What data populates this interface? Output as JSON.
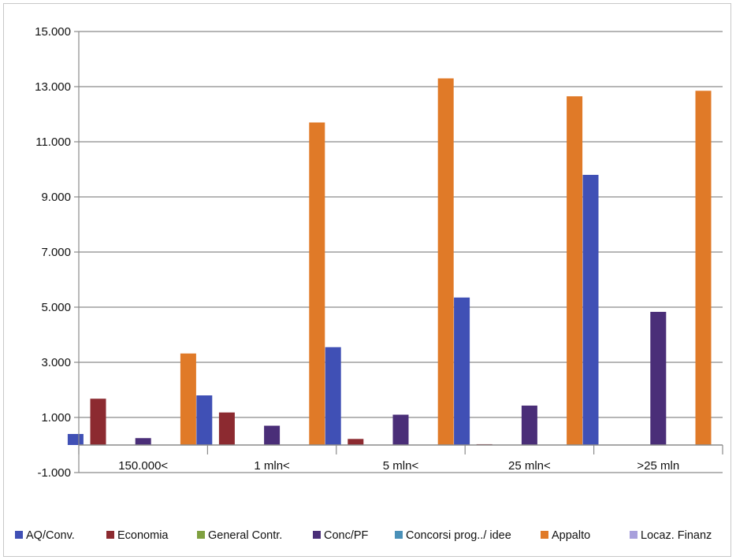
{
  "chart_data": {
    "type": "bar",
    "categories": [
      "150.000<",
      "1 mln<",
      "5 mln<",
      "25 mln<",
      ">25 mln"
    ],
    "ylim": [
      -1000,
      15000
    ],
    "yticks": [
      -1000,
      1000,
      3000,
      5000,
      7000,
      9000,
      11000,
      13000,
      15000
    ],
    "ytick_labels": [
      "-1.000",
      "1.000",
      "3.000",
      "5.000",
      "7.000",
      "9.000",
      "11.000",
      "13.000",
      "15.000"
    ],
    "grid": true,
    "legend_position": "bottom",
    "series": [
      {
        "name": "AQ/Conv.",
        "color": "#4050b5",
        "values": [
          400,
          1800,
          3550,
          5350,
          9800
        ]
      },
      {
        "name": "Economia",
        "color": "#8c2a30",
        "values": [
          1680,
          1180,
          220,
          30,
          0
        ]
      },
      {
        "name": "General Contr.",
        "color": "#7fa040",
        "values": [
          0,
          0,
          0,
          0,
          0
        ]
      },
      {
        "name": "Conc/PF",
        "color": "#4a2e78",
        "values": [
          250,
          700,
          1100,
          1430,
          4830
        ]
      },
      {
        "name": "Concorsi prog../ idee",
        "color": "#4a90b8",
        "values": [
          0,
          0,
          0,
          0,
          0
        ]
      },
      {
        "name": "Appalto",
        "color": "#e07a28",
        "values": [
          3320,
          11700,
          13300,
          12650,
          12850
        ]
      },
      {
        "name": "Locaz. Finanz",
        "color": "#a8a0dc",
        "values": [
          0,
          0,
          0,
          0,
          0
        ]
      }
    ]
  }
}
